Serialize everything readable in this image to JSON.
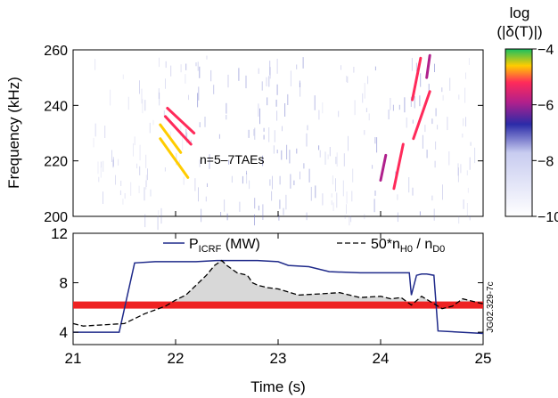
{
  "figure_id": "JG02.329-7c",
  "chart_data": [
    {
      "type": "heatmap",
      "title": "",
      "xlabel": "",
      "ylabel": "Frequency (kHz)",
      "xlim": [
        21,
        25
      ],
      "ylim": [
        200,
        260
      ],
      "yticks": [
        "200",
        "220",
        "240",
        "260"
      ],
      "annotation": {
        "text": "n=5–7TAEs",
        "x": 22.35,
        "y": 220
      },
      "colorbar": {
        "label_line1": "log",
        "label_line2": "(|δ(T)|)",
        "range": [
          -10,
          -4
        ],
        "ticks": [
          "−4",
          "−6",
          "−8",
          "−10"
        ],
        "colors": [
          "#ffffff",
          "#c8ccf0",
          "#2b2ba8",
          "#b0208c",
          "#ff2a5a",
          "#ffcc00",
          "#18c060"
        ]
      },
      "modes": [
        {
          "t": [
            21.85,
            22.05
          ],
          "f": [
            233,
            223
          ],
          "level": -5.5
        },
        {
          "t": [
            21.85,
            22.12
          ],
          "f": [
            228,
            214
          ],
          "level": -5.2
        },
        {
          "t": [
            21.9,
            22.15
          ],
          "f": [
            236,
            226
          ],
          "level": -6.0
        },
        {
          "t": [
            21.92,
            22.18
          ],
          "f": [
            239,
            230
          ],
          "level": -6.2
        },
        {
          "t": [
            24.0,
            24.05
          ],
          "f": [
            213,
            222
          ],
          "level": -7.0
        },
        {
          "t": [
            24.13,
            24.22
          ],
          "f": [
            210,
            226
          ],
          "level": -6.5
        },
        {
          "t": [
            24.31,
            24.39
          ],
          "f": [
            242,
            257
          ],
          "level": -6.5
        },
        {
          "t": [
            24.32,
            24.48
          ],
          "f": [
            228,
            245
          ],
          "level": -5.8
        },
        {
          "t": [
            24.45,
            24.48
          ],
          "f": [
            250,
            258
          ],
          "level": -6.8
        }
      ]
    },
    {
      "type": "line",
      "title": "",
      "xlabel": "Time (s)",
      "ylabel": "",
      "xlim": [
        21,
        25
      ],
      "ylim": [
        3,
        12
      ],
      "xticks": [
        21,
        22,
        23,
        24,
        25
      ],
      "yticks": [
        4,
        8,
        12
      ],
      "threshold": {
        "y": 6.2,
        "color": "#ee2222"
      },
      "legend": {
        "position": "top-right"
      },
      "series": [
        {
          "name": "P",
          "sub": "ICRF",
          "unit": " (MW)",
          "style": "solid",
          "color": "#1f2a8a",
          "x": [
            21.0,
            21.45,
            21.6,
            21.8,
            22.0,
            22.2,
            22.4,
            22.6,
            22.8,
            23.0,
            23.1,
            23.3,
            23.5,
            23.8,
            24.0,
            24.2,
            24.28,
            24.3,
            24.35,
            24.4,
            24.45,
            24.52,
            24.56,
            25.0
          ],
          "y": [
            4.0,
            4.0,
            9.6,
            9.7,
            9.7,
            9.7,
            9.8,
            9.8,
            9.8,
            9.7,
            9.4,
            9.3,
            8.9,
            8.8,
            8.8,
            8.8,
            8.8,
            7.0,
            8.6,
            8.7,
            8.7,
            8.6,
            4.1,
            3.9
          ]
        },
        {
          "name": "50*n",
          "sub": "H0",
          "mid": " / n",
          "sub2": "D0",
          "style": "dashed",
          "color": "#000000",
          "x": [
            21.0,
            21.1,
            21.3,
            21.5,
            21.7,
            21.8,
            21.9,
            22.0,
            22.1,
            22.2,
            22.3,
            22.38,
            22.45,
            22.5,
            22.55,
            22.6,
            22.7,
            22.75,
            22.8,
            22.9,
            23.0,
            23.2,
            23.4,
            23.6,
            23.8,
            24.0,
            24.1,
            24.2,
            24.3,
            24.4,
            24.5,
            24.6,
            24.7,
            24.8,
            25.0
          ],
          "y": [
            4.7,
            4.5,
            4.6,
            4.7,
            5.5,
            5.8,
            6.1,
            6.6,
            7.0,
            7.8,
            8.6,
            9.4,
            9.8,
            9.4,
            9.1,
            8.8,
            8.6,
            8.0,
            7.8,
            7.6,
            7.5,
            7.0,
            7.1,
            7.2,
            6.8,
            6.9,
            6.7,
            6.8,
            6.2,
            6.9,
            6.4,
            5.9,
            6.1,
            6.7,
            6.3
          ]
        }
      ],
      "shaded": {
        "between": "series[1] and threshold",
        "color": "#d8d8d8"
      }
    }
  ]
}
